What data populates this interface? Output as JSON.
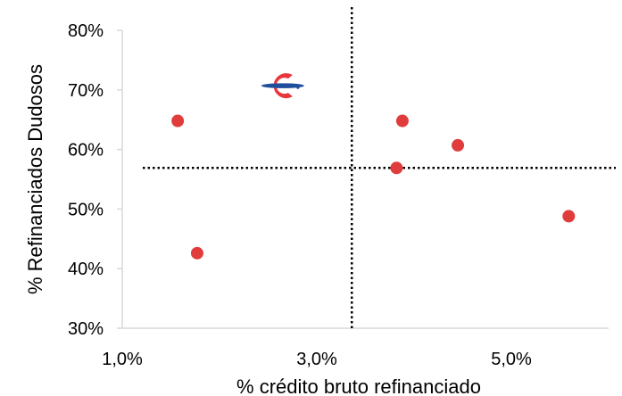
{
  "chart_data": {
    "type": "scatter",
    "xlabel": "% crédito bruto refinanciado",
    "ylabel": "% Refinanciados Dudosos",
    "xlim": [
      1.0,
      6.0
    ],
    "ylim": [
      30,
      80
    ],
    "x_ticks": [
      1.0,
      3.0,
      5.0
    ],
    "x_tick_labels": [
      "1,0%",
      "3,0%",
      "5,0%"
    ],
    "y_ticks": [
      30,
      40,
      50,
      60,
      70,
      80
    ],
    "y_tick_labels": [
      "30%",
      "40%",
      "50%",
      "60%",
      "70%",
      "80%"
    ],
    "grid": false,
    "legend": "none",
    "points": [
      {
        "x": 1.57,
        "y": 64.8
      },
      {
        "x": 1.77,
        "y": 42.6
      },
      {
        "x": 3.82,
        "y": 56.9
      },
      {
        "x": 3.88,
        "y": 64.8
      },
      {
        "x": 4.45,
        "y": 60.7
      },
      {
        "x": 5.59,
        "y": 48.8
      }
    ],
    "highlighted_point": {
      "x": 2.65,
      "y": 70.7,
      "icon": "bank-logo-icon"
    },
    "reference_lines": {
      "vertical_x": 3.36,
      "horizontal_y": 56.9,
      "style": "dotted"
    },
    "colors": {
      "point": "#E03C3C",
      "axis": "#D9D9D9",
      "reference_line": "#000000",
      "logo_red": "#E8363B",
      "logo_blue": "#1F4E9C"
    }
  }
}
